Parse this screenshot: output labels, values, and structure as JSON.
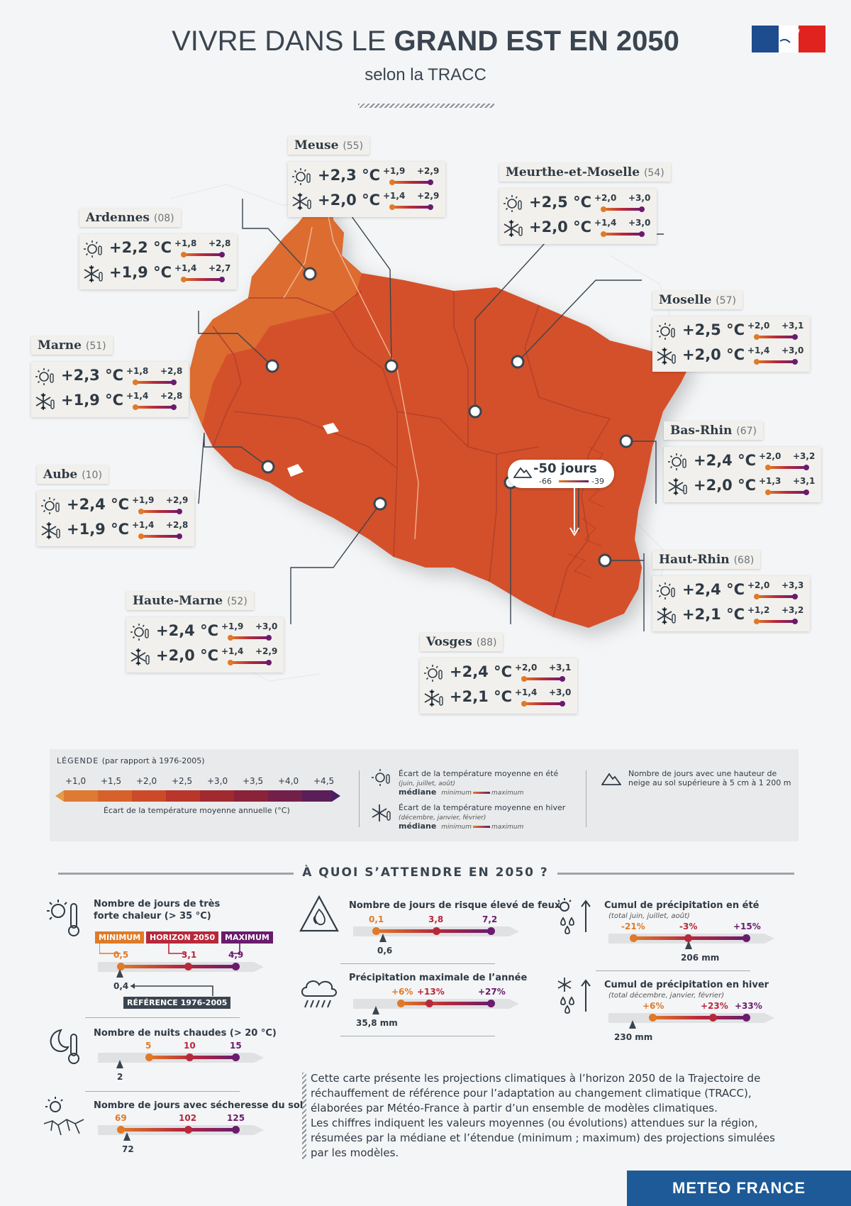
{
  "header": {
    "title_light": "VIVRE DANS LE ",
    "title_bold": "GRAND EST EN 2050",
    "subtitle": "selon la TRACC"
  },
  "departments": [
    {
      "key": "meuse",
      "name": "Meuse",
      "code": "(55)",
      "summer": {
        "value": "+2,3 °C",
        "min": "+1,9",
        "max": "+2,9"
      },
      "winter": {
        "value": "+2,0 °C",
        "min": "+1,4",
        "max": "+2,9"
      }
    },
    {
      "key": "meurthe",
      "name": "Meurthe-et-Moselle",
      "code": "(54)",
      "summer": {
        "value": "+2,5 °C",
        "min": "+2,0",
        "max": "+3,0"
      },
      "winter": {
        "value": "+2,0 °C",
        "min": "+1,4",
        "max": "+3,0"
      }
    },
    {
      "key": "ardennes",
      "name": "Ardennes",
      "code": "(08)",
      "summer": {
        "value": "+2,2 °C",
        "min": "+1,8",
        "max": "+2,8"
      },
      "winter": {
        "value": "+1,9 °C",
        "min": "+1,4",
        "max": "+2,7"
      }
    },
    {
      "key": "moselle",
      "name": "Moselle",
      "code": "(57)",
      "summer": {
        "value": "+2,5 °C",
        "min": "+2,0",
        "max": "+3,1"
      },
      "winter": {
        "value": "+2,0 °C",
        "min": "+1,4",
        "max": "+3,0"
      }
    },
    {
      "key": "marne",
      "name": "Marne",
      "code": "(51)",
      "summer": {
        "value": "+2,3 °C",
        "min": "+1,8",
        "max": "+2,8"
      },
      "winter": {
        "value": "+1,9 °C",
        "min": "+1,4",
        "max": "+2,8"
      }
    },
    {
      "key": "basrhin",
      "name": "Bas-Rhin",
      "code": "(67)",
      "summer": {
        "value": "+2,4 °C",
        "min": "+2,0",
        "max": "+3,2"
      },
      "winter": {
        "value": "+2,0 °C",
        "min": "+1,3",
        "max": "+3,1"
      }
    },
    {
      "key": "aube",
      "name": "Aube",
      "code": "(10)",
      "summer": {
        "value": "+2,4 °C",
        "min": "+1,9",
        "max": "+2,9"
      },
      "winter": {
        "value": "+1,9 °C",
        "min": "+1,4",
        "max": "+2,8"
      }
    },
    {
      "key": "hautrhin",
      "name": "Haut-Rhin",
      "code": "(68)",
      "summer": {
        "value": "+2,4 °C",
        "min": "+2,0",
        "max": "+3,3"
      },
      "winter": {
        "value": "+2,1 °C",
        "min": "+1,2",
        "max": "+3,2"
      }
    },
    {
      "key": "hautemarne",
      "name": "Haute-Marne",
      "code": "(52)",
      "summer": {
        "value": "+2,4 °C",
        "min": "+1,9",
        "max": "+3,0"
      },
      "winter": {
        "value": "+2,0 °C",
        "min": "+1,4",
        "max": "+2,9"
      }
    },
    {
      "key": "vosges",
      "name": "Vosges",
      "code": "(88)",
      "summer": {
        "value": "+2,4 °C",
        "min": "+2,0",
        "max": "+3,1"
      },
      "winter": {
        "value": "+2,1 °C",
        "min": "+1,4",
        "max": "+3,0"
      }
    }
  ],
  "snow": {
    "value": "-50 jours",
    "min": "-66",
    "max": "-39"
  },
  "legend": {
    "title": "LÉGENDE",
    "title_note": "(par rapport à 1976-2005)",
    "ticks": [
      "+1,0",
      "+1,5",
      "+2,0",
      "+2,5",
      "+3,0",
      "+3,5",
      "+4,0",
      "+4,5"
    ],
    "scale_caption": "Écart de la température moyenne annuelle (°C)",
    "summer_label": "Écart de la température moyenne en été",
    "summer_note": "(juin, juillet, août)",
    "winter_label": "Écart de la température moyenne en hiver",
    "winter_note": "(décembre, janvier, février)",
    "mediane": "médiane",
    "minimum": "minimum",
    "maximum": "maximum",
    "snow_label_1": "Nombre de jours avec une hauteur de",
    "snow_label_2": "neige au sol supérieure à 5 cm à 1 200 m"
  },
  "section_title": "À QUOI S’ATTENDRE EN 2050 ?",
  "indicators": {
    "heat": {
      "title_1": "Nombre de jours de très",
      "title_2": "forte chaleur (> 35 °C)",
      "min": "0,5",
      "med": "3,1",
      "max": "4,9",
      "ref": "0,4",
      "tag_min": "MINIMUM",
      "tag_med": "HORIZON 2050",
      "tag_max": "MAXIMUM",
      "tag_ref": "RÉFÉRENCE 1976-2005"
    },
    "nights": {
      "title": "Nombre de nuits chaudes (> 20 °C)",
      "min": "5",
      "med": "10",
      "max": "15",
      "ref": "2"
    },
    "drought": {
      "title": "Nombre de jours avec sécheresse du sol",
      "min": "69",
      "med": "102",
      "max": "125",
      "ref": "72"
    },
    "fire": {
      "title": "Nombre de jours de risque élevé de feux",
      "min": "0,1",
      "med": "3,8",
      "max": "7,2",
      "ref": "0,6"
    },
    "maxprecip": {
      "title": "Précipitation maximale de l’année",
      "min": "+6%",
      "med": "+13%",
      "max": "+27%",
      "ref": "35,8 mm"
    },
    "summerprecip": {
      "title": "Cumul de précipitation en été",
      "sub": "(total juin, juillet, août)",
      "min": "-21%",
      "med": "-3%",
      "max": "+15%",
      "ref": "206 mm"
    },
    "winterprecip": {
      "title": "Cumul de précipitation en hiver",
      "sub": "(total décembre, janvier, février)",
      "min": "+6%",
      "med": "+23%",
      "max": "+33%",
      "ref": "230 mm"
    }
  },
  "description": [
    "Cette carte présente les projections climatiques à l’horizon 2050 de la Trajectoire de",
    "réchauffement de référence pour l’adaptation au changement climatique (TRACC),",
    "élaborées par Météo-France à partir d’un ensemble de modèles climatiques.",
    "Les chiffres indiquent les valeurs moyennes (ou évolutions) attendues sur la région,",
    "résumées par la médiane et l’étendue (minimum ; maximum) des projections simulées",
    "par les modèles."
  ],
  "footer": "METEO FRANCE",
  "colors": {
    "orange": "#e07a28",
    "red": "#b8283b",
    "purple": "#6b1b6e",
    "map": "#d4502a",
    "map_light": "#dd7131",
    "brand_blue": "#1d5a97"
  }
}
